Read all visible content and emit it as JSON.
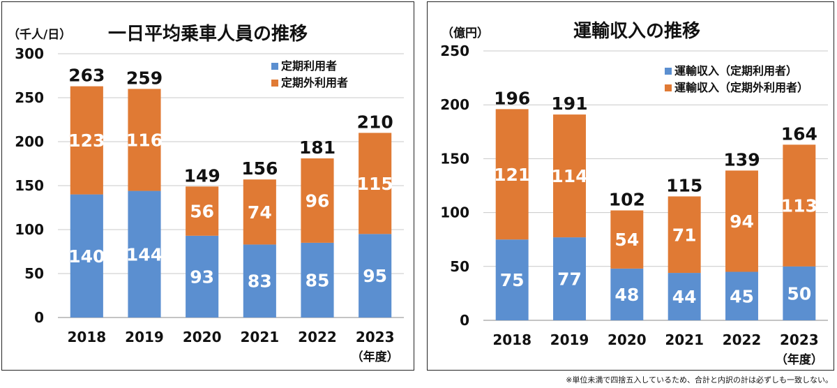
{
  "note": "※単位未満で四捨五入しているため、合計と内訳の計は必ずしも一致しない。",
  "colors": {
    "commuter": "#5B8FD0",
    "noncommuter": "#E07A34",
    "grid": "#c8c8c8"
  },
  "chart_data": [
    {
      "type": "bar",
      "stacked": true,
      "title": "一日平均乗車人員の推移",
      "unit": "（千人/日）",
      "xunit": "（年度）",
      "categories": [
        "2018",
        "2019",
        "2020",
        "2021",
        "2022",
        "2023"
      ],
      "series": [
        {
          "name": "定期利用者",
          "values": [
            140,
            144,
            93,
            83,
            85,
            95
          ]
        },
        {
          "name": "定期外利用者",
          "values": [
            123,
            116,
            56,
            74,
            96,
            115
          ]
        }
      ],
      "totals": [
        263,
        259,
        149,
        156,
        181,
        210
      ],
      "ylim": [
        0,
        300
      ],
      "yticks": [
        0,
        50,
        100,
        150,
        200,
        250,
        300
      ],
      "grid": true,
      "legend": "top-right"
    },
    {
      "type": "bar",
      "stacked": true,
      "title": "運輸収入の推移",
      "unit": "（億円）",
      "xunit": "（年度）",
      "categories": [
        "2018",
        "2019",
        "2020",
        "2021",
        "2022",
        "2023"
      ],
      "series": [
        {
          "name": "運輸収入（定期利用者）",
          "values": [
            75,
            77,
            48,
            44,
            45,
            50
          ]
        },
        {
          "name": "運輸収入（定期外利用者）",
          "values": [
            121,
            114,
            54,
            71,
            94,
            113
          ]
        }
      ],
      "totals": [
        196,
        191,
        102,
        115,
        139,
        164
      ],
      "ylim": [
        0,
        250
      ],
      "yticks": [
        0,
        50,
        100,
        150,
        200,
        250
      ],
      "grid": true,
      "legend": "top-right"
    }
  ]
}
